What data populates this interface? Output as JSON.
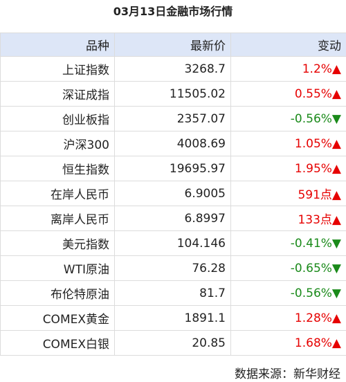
{
  "title": "03月13日金融市场行情",
  "table": {
    "header": [
      "品种",
      "最新价",
      "变动"
    ],
    "rows": [
      {
        "name": "上证指数",
        "price": "3268.7",
        "change": "1.2%▲",
        "color": "#e60000"
      },
      {
        "name": "深证成指",
        "price": "11505.02",
        "change": "0.55%▲",
        "color": "#e60000"
      },
      {
        "name": "创业板指",
        "price": "2357.07",
        "change": "-0.56%▼",
        "color": "#1a8a1a"
      },
      {
        "name": "沪深300",
        "price": "4008.69",
        "change": "1.05%▲",
        "color": "#e60000"
      },
      {
        "name": "恒生指数",
        "price": "19695.97",
        "change": "1.95%▲",
        "color": "#e60000"
      },
      {
        "name": "在岸人民币",
        "price": "6.9005",
        "change": "591点▲",
        "color": "#e60000"
      },
      {
        "name": "离岸人民币",
        "price": "6.8997",
        "change": "133点▲",
        "color": "#e60000"
      },
      {
        "name": "美元指数",
        "price": "104.146",
        "change": "-0.41%▼",
        "color": "#1a8a1a"
      },
      {
        "name": "WTI原油",
        "price": "76.28",
        "change": "-0.65%▼",
        "color": "#1a8a1a"
      },
      {
        "name": "布伦特原油",
        "price": "81.7",
        "change": "-0.56%▼",
        "color": "#1a8a1a"
      },
      {
        "name": "COMEX黄金",
        "price": "1891.1",
        "change": "1.28%▲",
        "color": "#e60000"
      },
      {
        "name": "COMEX白银",
        "price": "20.85",
        "change": "1.68%▲",
        "color": "#e60000"
      }
    ]
  },
  "source": "数据来源：新华财经"
}
